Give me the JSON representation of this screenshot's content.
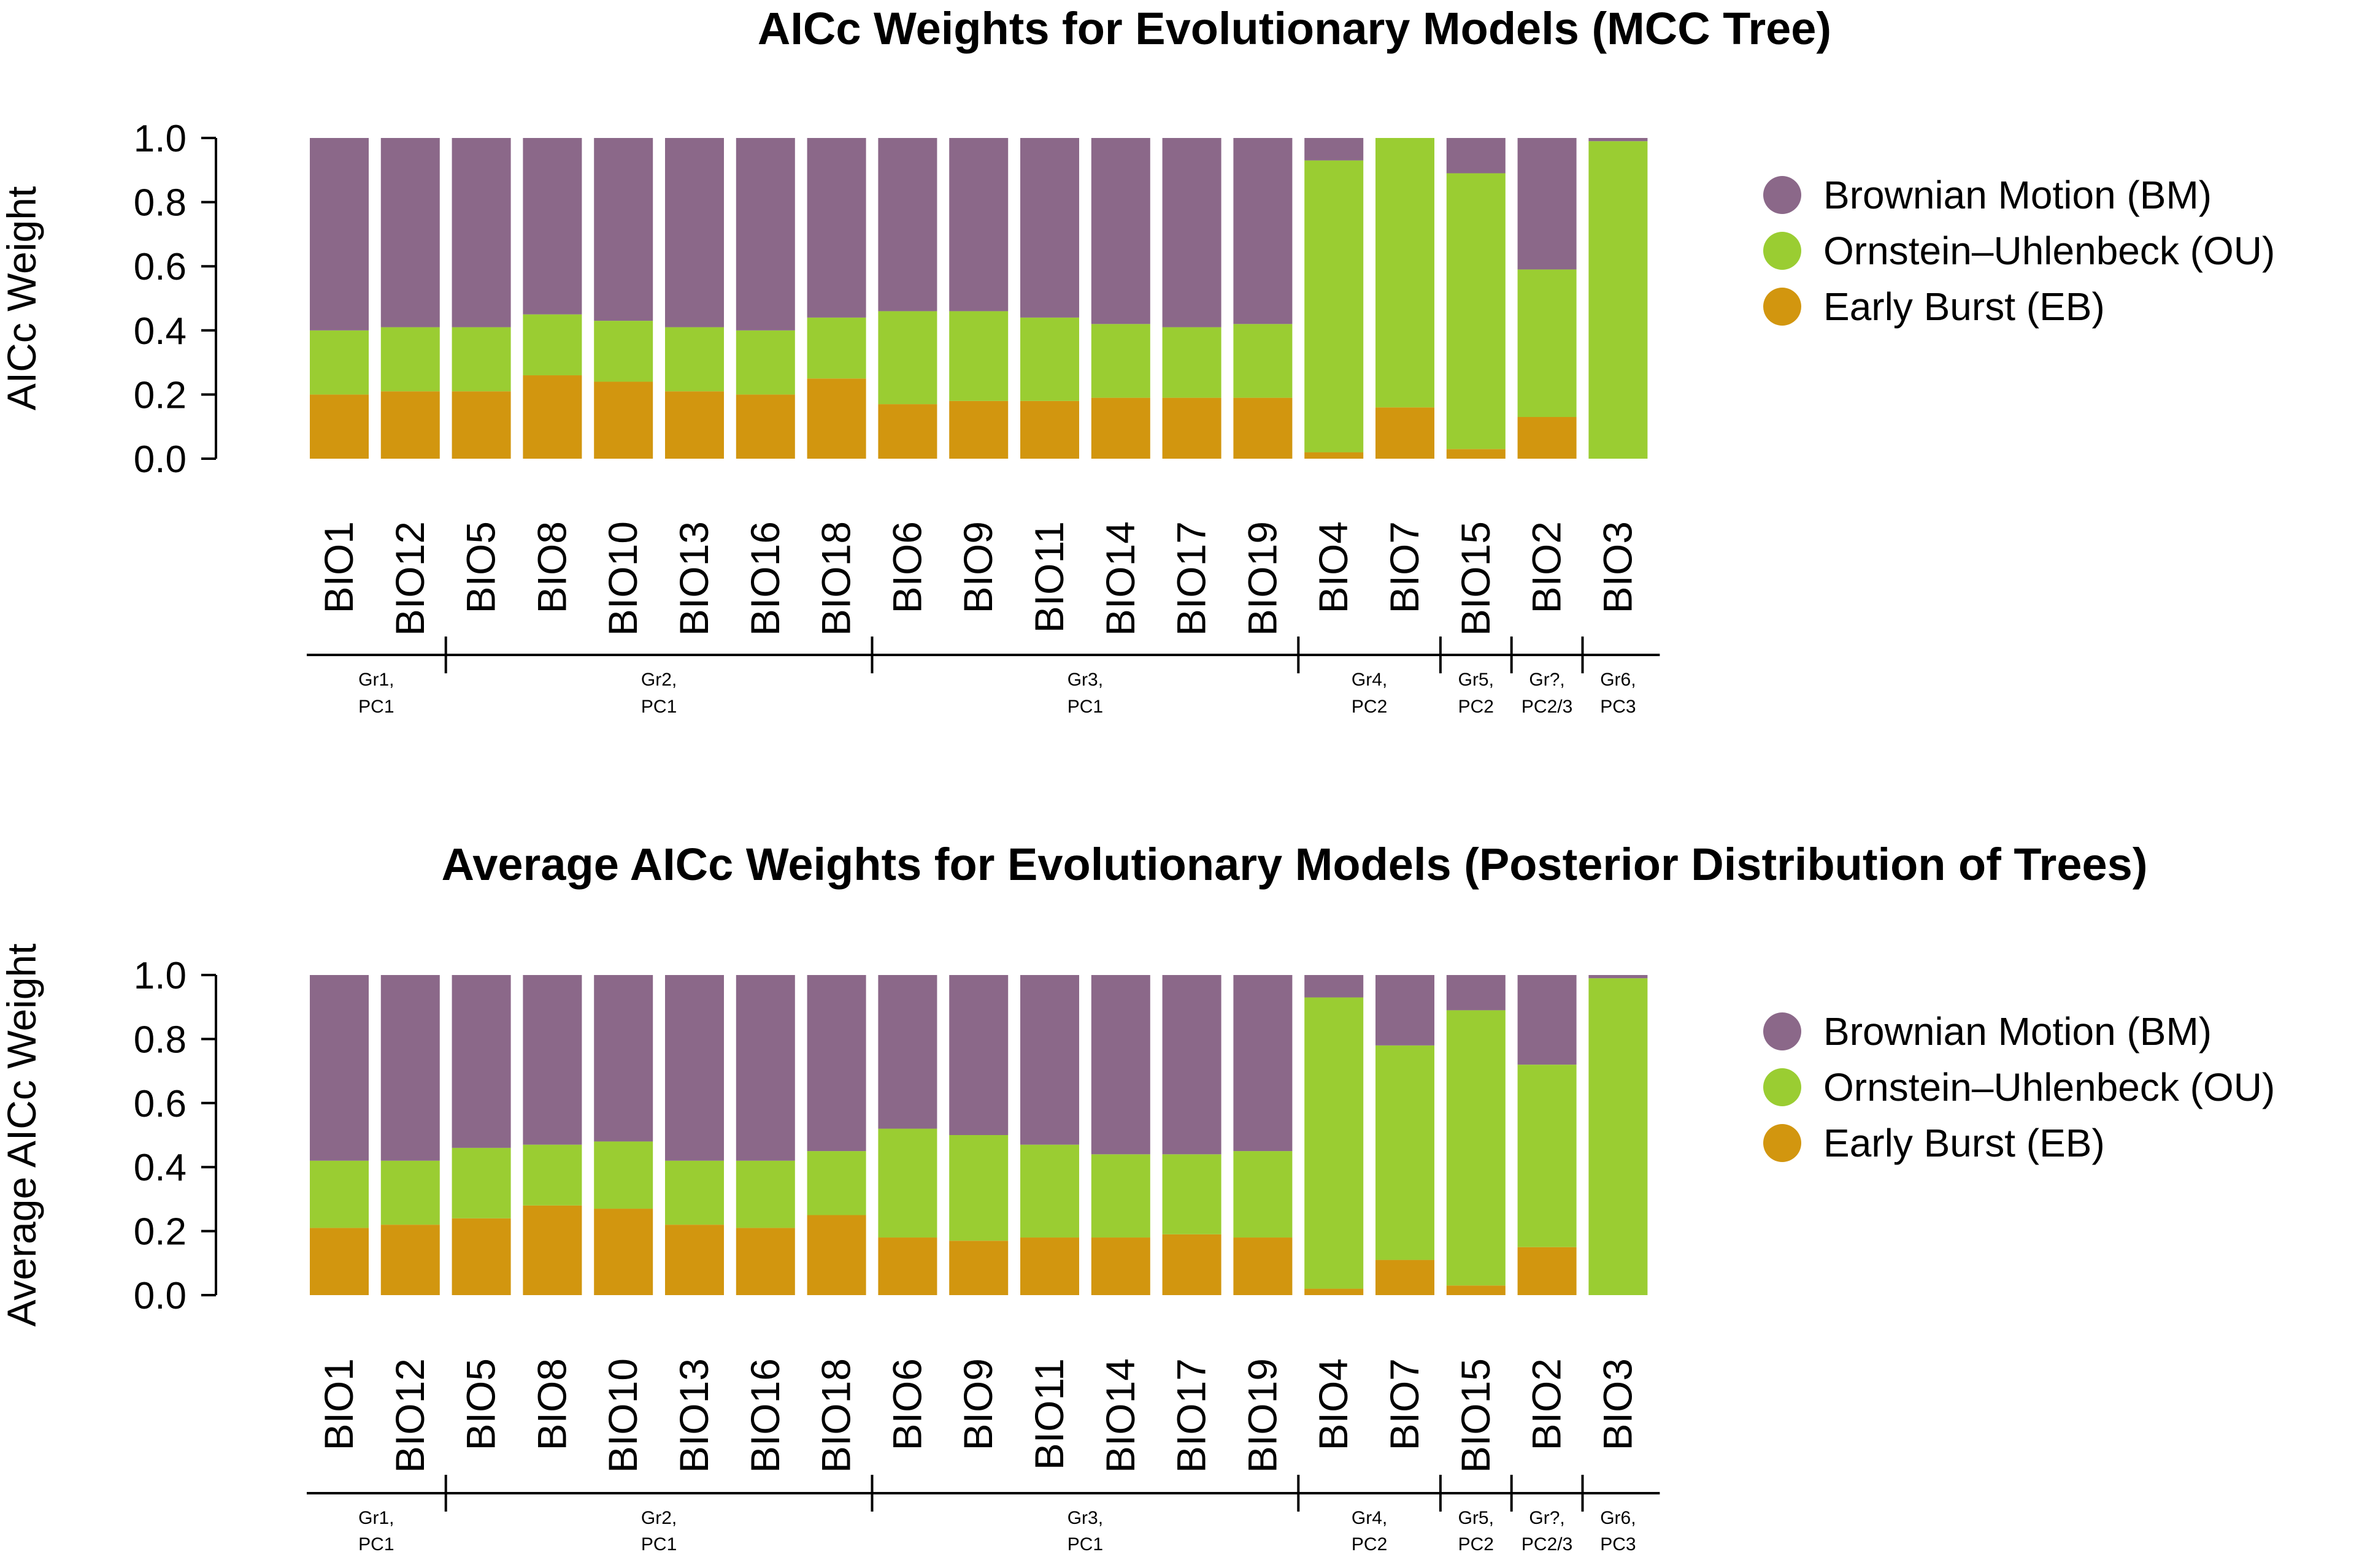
{
  "chart_data": [
    {
      "type": "bar",
      "stacked": true,
      "title": "AICc Weights for Evolutionary Models (MCC Tree)",
      "ylabel": "AICc Weight",
      "xlabel": "",
      "ylim": [
        0,
        1
      ],
      "yticks": [
        "0.0",
        "0.2",
        "0.4",
        "0.6",
        "0.8",
        "1.0"
      ],
      "categories": [
        "BIO1",
        "BIO12",
        "BIO5",
        "BIO8",
        "BIO10",
        "BIO13",
        "BIO16",
        "BIO18",
        "BIO6",
        "BIO9",
        "BIO11",
        "BIO14",
        "BIO17",
        "BIO19",
        "BIO4",
        "BIO7",
        "BIO15",
        "BIO2",
        "BIO3"
      ],
      "series": [
        {
          "name": "Early Burst (EB)",
          "key": "EB",
          "color": "#D2960F",
          "values": [
            0.2,
            0.21,
            0.21,
            0.26,
            0.24,
            0.21,
            0.2,
            0.25,
            0.17,
            0.18,
            0.18,
            0.19,
            0.19,
            0.19,
            0.02,
            0.16,
            0.03,
            0.13,
            0.0
          ]
        },
        {
          "name": "Ornstein–Uhlenbeck (OU)",
          "key": "OU",
          "color": "#9ACD32",
          "values": [
            0.2,
            0.2,
            0.2,
            0.19,
            0.19,
            0.2,
            0.2,
            0.19,
            0.29,
            0.28,
            0.26,
            0.23,
            0.22,
            0.23,
            0.91,
            0.84,
            0.86,
            0.46,
            0.99
          ]
        },
        {
          "name": "Brownian Motion (BM)",
          "key": "BM",
          "color": "#8B6889",
          "values": [
            0.6,
            0.59,
            0.59,
            0.55,
            0.57,
            0.59,
            0.6,
            0.56,
            0.54,
            0.54,
            0.56,
            0.58,
            0.59,
            0.58,
            0.07,
            0.0,
            0.11,
            0.41,
            0.01
          ]
        }
      ],
      "groups": [
        {
          "line1": "Gr1,",
          "line2": "PC1",
          "start": 0,
          "end": 1
        },
        {
          "line1": "Gr2,",
          "line2": "PC1",
          "start": 2,
          "end": 7
        },
        {
          "line1": "Gr3,",
          "line2": "PC1",
          "start": 8,
          "end": 13
        },
        {
          "line1": "Gr4,",
          "line2": "PC2",
          "start": 14,
          "end": 15
        },
        {
          "line1": "Gr5,",
          "line2": "PC2",
          "start": 16,
          "end": 16
        },
        {
          "line1": "Gr?,",
          "line2": "PC2/3",
          "start": 17,
          "end": 17
        },
        {
          "line1": "Gr6,",
          "line2": "PC3",
          "start": 18,
          "end": 18
        }
      ],
      "legend": {
        "placement": "right",
        "order": [
          "BM",
          "OU",
          "EB"
        ]
      }
    },
    {
      "type": "bar",
      "stacked": true,
      "title": "Average AICc Weights for Evolutionary Models (Posterior Distribution of Trees)",
      "ylabel": "Average AICc Weight",
      "xlabel": "",
      "ylim": [
        0,
        1
      ],
      "yticks": [
        "0.0",
        "0.2",
        "0.4",
        "0.6",
        "0.8",
        "1.0"
      ],
      "categories": [
        "BIO1",
        "BIO12",
        "BIO5",
        "BIO8",
        "BIO10",
        "BIO13",
        "BIO16",
        "BIO18",
        "BIO6",
        "BIO9",
        "BIO11",
        "BIO14",
        "BIO17",
        "BIO19",
        "BIO4",
        "BIO7",
        "BIO15",
        "BIO2",
        "BIO3"
      ],
      "series": [
        {
          "name": "Early Burst (EB)",
          "key": "EB",
          "color": "#D2960F",
          "values": [
            0.21,
            0.22,
            0.24,
            0.28,
            0.27,
            0.22,
            0.21,
            0.25,
            0.18,
            0.17,
            0.18,
            0.18,
            0.19,
            0.18,
            0.02,
            0.11,
            0.03,
            0.15,
            0.0
          ]
        },
        {
          "name": "Ornstein–Uhlenbeck (OU)",
          "key": "OU",
          "color": "#9ACD32",
          "values": [
            0.21,
            0.2,
            0.22,
            0.19,
            0.21,
            0.2,
            0.21,
            0.2,
            0.34,
            0.33,
            0.29,
            0.26,
            0.25,
            0.27,
            0.91,
            0.67,
            0.86,
            0.57,
            0.99
          ]
        },
        {
          "name": "Brownian Motion (BM)",
          "key": "BM",
          "color": "#8B6889",
          "values": [
            0.58,
            0.58,
            0.54,
            0.53,
            0.52,
            0.58,
            0.58,
            0.55,
            0.48,
            0.5,
            0.53,
            0.56,
            0.56,
            0.55,
            0.07,
            0.22,
            0.11,
            0.28,
            0.01
          ]
        }
      ],
      "groups": [
        {
          "line1": "Gr1,",
          "line2": "PC1",
          "start": 0,
          "end": 1
        },
        {
          "line1": "Gr2,",
          "line2": "PC1",
          "start": 2,
          "end": 7
        },
        {
          "line1": "Gr3,",
          "line2": "PC1",
          "start": 8,
          "end": 13
        },
        {
          "line1": "Gr4,",
          "line2": "PC2",
          "start": 14,
          "end": 15
        },
        {
          "line1": "Gr5,",
          "line2": "PC2",
          "start": 16,
          "end": 16
        },
        {
          "line1": "Gr?,",
          "line2": "PC2/3",
          "start": 17,
          "end": 17
        },
        {
          "line1": "Gr6,",
          "line2": "PC3",
          "start": 18,
          "end": 18
        }
      ],
      "legend": {
        "placement": "right",
        "order": [
          "BM",
          "OU",
          "EB"
        ]
      }
    }
  ]
}
